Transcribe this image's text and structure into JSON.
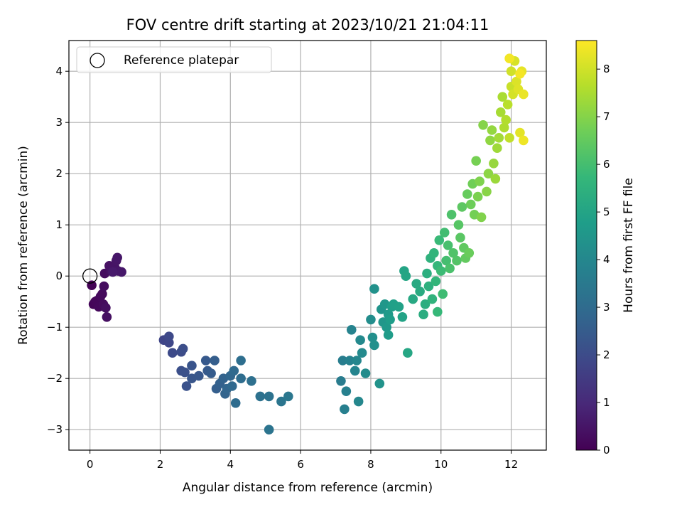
{
  "chart_data": {
    "type": "scatter",
    "title": "FOV centre drift starting at 2023/10/21 21:04:11",
    "xlabel": "Angular distance from reference (arcmin)",
    "ylabel": "Rotation from reference (arcmin)",
    "xlim": [
      -0.6,
      13.0
    ],
    "ylim": [
      -3.4,
      4.6
    ],
    "xticks": [
      0,
      2,
      4,
      6,
      8,
      10,
      12
    ],
    "yticks": [
      -3,
      -2,
      -1,
      0,
      1,
      2,
      3,
      4
    ],
    "grid": true,
    "legend": {
      "placement": "upper-left",
      "entries": [
        "Reference platepar"
      ]
    },
    "colorbar": {
      "label": "Hours from first FF file",
      "range": [
        0,
        8.6
      ],
      "ticks": [
        0,
        1,
        2,
        3,
        4,
        5,
        6,
        7,
        8
      ],
      "colormap": [
        "#440154",
        "#482878",
        "#3e4989",
        "#31688e",
        "#26828e",
        "#1f9e89",
        "#35b779",
        "#6ece58",
        "#b5de2b",
        "#fde725"
      ]
    },
    "reference_point": {
      "label": "Reference platepar",
      "x": 0,
      "y": 0
    },
    "points": [
      {
        "x": 0.05,
        "y": -0.18,
        "t": 0.05
      },
      {
        "x": 0.1,
        "y": -0.55,
        "t": 0.1
      },
      {
        "x": 0.15,
        "y": -0.5,
        "t": 0.12
      },
      {
        "x": 0.2,
        "y": -0.48,
        "t": 0.15
      },
      {
        "x": 0.25,
        "y": -0.6,
        "t": 0.18
      },
      {
        "x": 0.3,
        "y": -0.4,
        "t": 0.2
      },
      {
        "x": 0.35,
        "y": -0.35,
        "t": 0.22
      },
      {
        "x": 0.38,
        "y": -0.55,
        "t": 0.25
      },
      {
        "x": 0.4,
        "y": -0.2,
        "t": 0.28
      },
      {
        "x": 0.42,
        "y": 0.05,
        "t": 0.3
      },
      {
        "x": 0.45,
        "y": -0.62,
        "t": 0.32
      },
      {
        "x": 0.48,
        "y": -0.8,
        "t": 0.35
      },
      {
        "x": 0.55,
        "y": 0.2,
        "t": 0.4
      },
      {
        "x": 0.6,
        "y": 0.1,
        "t": 0.42
      },
      {
        "x": 0.7,
        "y": 0.18,
        "t": 0.45
      },
      {
        "x": 0.75,
        "y": 0.3,
        "t": 0.48
      },
      {
        "x": 0.8,
        "y": 0.1,
        "t": 0.5
      },
      {
        "x": 0.78,
        "y": 0.36,
        "t": 0.52
      },
      {
        "x": 0.9,
        "y": 0.08,
        "t": 0.55
      },
      {
        "x": 0.65,
        "y": 0.08,
        "t": 0.6
      },
      {
        "x": 2.1,
        "y": -1.25,
        "t": 1.8
      },
      {
        "x": 2.25,
        "y": -1.3,
        "t": 1.85
      },
      {
        "x": 2.25,
        "y": -1.18,
        "t": 1.9
      },
      {
        "x": 2.35,
        "y": -1.5,
        "t": 1.95
      },
      {
        "x": 2.6,
        "y": -1.48,
        "t": 2.0
      },
      {
        "x": 2.65,
        "y": -1.42,
        "t": 2.05
      },
      {
        "x": 2.6,
        "y": -1.85,
        "t": 2.1
      },
      {
        "x": 2.7,
        "y": -1.88,
        "t": 2.15
      },
      {
        "x": 2.75,
        "y": -2.15,
        "t": 2.2
      },
      {
        "x": 2.9,
        "y": -1.75,
        "t": 2.25
      },
      {
        "x": 2.9,
        "y": -2.0,
        "t": 2.3
      },
      {
        "x": 3.1,
        "y": -1.95,
        "t": 2.35
      },
      {
        "x": 3.3,
        "y": -1.65,
        "t": 2.4
      },
      {
        "x": 3.35,
        "y": -1.85,
        "t": 2.45
      },
      {
        "x": 3.45,
        "y": -1.9,
        "t": 2.5
      },
      {
        "x": 3.55,
        "y": -1.65,
        "t": 2.55
      },
      {
        "x": 3.6,
        "y": -2.2,
        "t": 2.6
      },
      {
        "x": 3.7,
        "y": -2.1,
        "t": 2.65
      },
      {
        "x": 3.8,
        "y": -2.0,
        "t": 2.7
      },
      {
        "x": 3.85,
        "y": -2.3,
        "t": 2.75
      },
      {
        "x": 3.9,
        "y": -2.2,
        "t": 2.8
      },
      {
        "x": 4.0,
        "y": -1.95,
        "t": 2.85
      },
      {
        "x": 4.05,
        "y": -2.15,
        "t": 2.9
      },
      {
        "x": 4.1,
        "y": -1.85,
        "t": 2.95
      },
      {
        "x": 4.15,
        "y": -2.48,
        "t": 3.0
      },
      {
        "x": 4.3,
        "y": -2.0,
        "t": 3.05
      },
      {
        "x": 4.3,
        "y": -1.65,
        "t": 3.1
      },
      {
        "x": 4.6,
        "y": -2.05,
        "t": 3.15
      },
      {
        "x": 4.85,
        "y": -2.35,
        "t": 3.2
      },
      {
        "x": 5.1,
        "y": -2.35,
        "t": 3.25
      },
      {
        "x": 5.1,
        "y": -3.0,
        "t": 3.3
      },
      {
        "x": 5.45,
        "y": -2.45,
        "t": 3.35
      },
      {
        "x": 5.65,
        "y": -2.35,
        "t": 3.4
      },
      {
        "x": 7.15,
        "y": -2.05,
        "t": 3.6
      },
      {
        "x": 7.2,
        "y": -1.65,
        "t": 3.65
      },
      {
        "x": 7.25,
        "y": -2.6,
        "t": 3.7
      },
      {
        "x": 7.3,
        "y": -2.25,
        "t": 3.75
      },
      {
        "x": 7.4,
        "y": -1.65,
        "t": 3.8
      },
      {
        "x": 7.45,
        "y": -1.05,
        "t": 3.85
      },
      {
        "x": 7.55,
        "y": -1.85,
        "t": 3.9
      },
      {
        "x": 7.6,
        "y": -1.65,
        "t": 3.95
      },
      {
        "x": 7.65,
        "y": -2.45,
        "t": 4.0
      },
      {
        "x": 7.7,
        "y": -1.25,
        "t": 4.05
      },
      {
        "x": 7.75,
        "y": -1.5,
        "t": 4.1
      },
      {
        "x": 7.85,
        "y": -1.9,
        "t": 4.15
      },
      {
        "x": 8.0,
        "y": -0.85,
        "t": 4.2
      },
      {
        "x": 8.05,
        "y": -1.2,
        "t": 4.25
      },
      {
        "x": 8.1,
        "y": -1.35,
        "t": 4.3
      },
      {
        "x": 8.1,
        "y": -0.25,
        "t": 4.35
      },
      {
        "x": 8.25,
        "y": -2.1,
        "t": 4.4
      },
      {
        "x": 8.3,
        "y": -0.65,
        "t": 4.45
      },
      {
        "x": 8.35,
        "y": -0.9,
        "t": 4.5
      },
      {
        "x": 8.4,
        "y": -0.55,
        "t": 4.55
      },
      {
        "x": 8.45,
        "y": -1.0,
        "t": 4.6
      },
      {
        "x": 8.5,
        "y": -0.75,
        "t": 4.65
      },
      {
        "x": 8.5,
        "y": -1.15,
        "t": 4.7
      },
      {
        "x": 8.55,
        "y": -0.85,
        "t": 4.75
      },
      {
        "x": 8.6,
        "y": -0.6,
        "t": 4.8
      },
      {
        "x": 8.65,
        "y": -0.55,
        "t": 4.85
      },
      {
        "x": 8.8,
        "y": -0.6,
        "t": 4.9
      },
      {
        "x": 8.9,
        "y": -0.8,
        "t": 4.95
      },
      {
        "x": 8.95,
        "y": 0.1,
        "t": 5.0
      },
      {
        "x": 9.0,
        "y": 0.0,
        "t": 5.05
      },
      {
        "x": 9.05,
        "y": -1.5,
        "t": 5.1
      },
      {
        "x": 9.2,
        "y": -0.45,
        "t": 5.15
      },
      {
        "x": 9.3,
        "y": -0.15,
        "t": 5.2
      },
      {
        "x": 9.4,
        "y": -0.3,
        "t": 5.25
      },
      {
        "x": 9.5,
        "y": -0.75,
        "t": 5.3
      },
      {
        "x": 9.55,
        "y": -0.55,
        "t": 5.35
      },
      {
        "x": 9.6,
        "y": 0.05,
        "t": 5.4
      },
      {
        "x": 9.65,
        "y": -0.2,
        "t": 5.45
      },
      {
        "x": 9.7,
        "y": 0.35,
        "t": 5.5
      },
      {
        "x": 9.75,
        "y": -0.45,
        "t": 5.55
      },
      {
        "x": 9.8,
        "y": 0.45,
        "t": 5.6
      },
      {
        "x": 9.85,
        "y": -0.1,
        "t": 5.65
      },
      {
        "x": 9.9,
        "y": 0.2,
        "t": 5.7
      },
      {
        "x": 9.9,
        "y": -0.7,
        "t": 5.75
      },
      {
        "x": 9.95,
        "y": 0.7,
        "t": 5.8
      },
      {
        "x": 10.0,
        "y": 0.1,
        "t": 5.85
      },
      {
        "x": 10.05,
        "y": -0.35,
        "t": 5.9
      },
      {
        "x": 10.1,
        "y": 0.85,
        "t": 5.95
      },
      {
        "x": 10.15,
        "y": 0.3,
        "t": 6.0
      },
      {
        "x": 10.2,
        "y": 0.6,
        "t": 6.05
      },
      {
        "x": 10.25,
        "y": 0.15,
        "t": 6.1
      },
      {
        "x": 10.3,
        "y": 1.2,
        "t": 6.15
      },
      {
        "x": 10.35,
        "y": 0.45,
        "t": 6.2
      },
      {
        "x": 10.45,
        "y": 0.3,
        "t": 6.25
      },
      {
        "x": 10.5,
        "y": 1.0,
        "t": 6.3
      },
      {
        "x": 10.55,
        "y": 0.75,
        "t": 6.35
      },
      {
        "x": 10.6,
        "y": 1.35,
        "t": 6.4
      },
      {
        "x": 10.65,
        "y": 0.55,
        "t": 6.45
      },
      {
        "x": 10.7,
        "y": 0.35,
        "t": 6.5
      },
      {
        "x": 10.75,
        "y": 1.6,
        "t": 6.55
      },
      {
        "x": 10.8,
        "y": 0.45,
        "t": 6.6
      },
      {
        "x": 10.85,
        "y": 1.4,
        "t": 6.65
      },
      {
        "x": 10.9,
        "y": 1.8,
        "t": 6.7
      },
      {
        "x": 10.95,
        "y": 1.2,
        "t": 6.75
      },
      {
        "x": 11.0,
        "y": 2.25,
        "t": 6.8
      },
      {
        "x": 11.05,
        "y": 1.55,
        "t": 6.85
      },
      {
        "x": 11.1,
        "y": 1.85,
        "t": 6.9
      },
      {
        "x": 11.15,
        "y": 1.15,
        "t": 6.95
      },
      {
        "x": 11.2,
        "y": 2.95,
        "t": 7.0
      },
      {
        "x": 11.3,
        "y": 1.65,
        "t": 7.05
      },
      {
        "x": 11.35,
        "y": 2.0,
        "t": 7.1
      },
      {
        "x": 11.4,
        "y": 2.65,
        "t": 7.15
      },
      {
        "x": 11.45,
        "y": 2.85,
        "t": 7.2
      },
      {
        "x": 11.5,
        "y": 2.2,
        "t": 7.25
      },
      {
        "x": 11.55,
        "y": 1.9,
        "t": 7.3
      },
      {
        "x": 11.6,
        "y": 2.5,
        "t": 7.35
      },
      {
        "x": 11.65,
        "y": 2.7,
        "t": 7.4
      },
      {
        "x": 11.7,
        "y": 3.2,
        "t": 7.45
      },
      {
        "x": 11.75,
        "y": 3.5,
        "t": 7.5
      },
      {
        "x": 11.8,
        "y": 2.9,
        "t": 7.55
      },
      {
        "x": 11.85,
        "y": 3.05,
        "t": 7.6
      },
      {
        "x": 11.9,
        "y": 3.35,
        "t": 7.7
      },
      {
        "x": 11.95,
        "y": 2.7,
        "t": 7.8
      },
      {
        "x": 12.0,
        "y": 3.7,
        "t": 7.9
      },
      {
        "x": 12.0,
        "y": 4.0,
        "t": 8.0
      },
      {
        "x": 12.05,
        "y": 3.55,
        "t": 8.05
      },
      {
        "x": 12.1,
        "y": 4.2,
        "t": 8.1
      },
      {
        "x": 12.15,
        "y": 3.8,
        "t": 8.15
      },
      {
        "x": 12.2,
        "y": 3.65,
        "t": 8.2
      },
      {
        "x": 12.25,
        "y": 2.8,
        "t": 8.25
      },
      {
        "x": 12.3,
        "y": 4.0,
        "t": 8.3
      },
      {
        "x": 12.35,
        "y": 3.55,
        "t": 8.35
      },
      {
        "x": 12.35,
        "y": 2.65,
        "t": 8.4
      },
      {
        "x": 11.95,
        "y": 4.25,
        "t": 8.45
      },
      {
        "x": 12.25,
        "y": 3.95,
        "t": 8.5
      }
    ]
  }
}
